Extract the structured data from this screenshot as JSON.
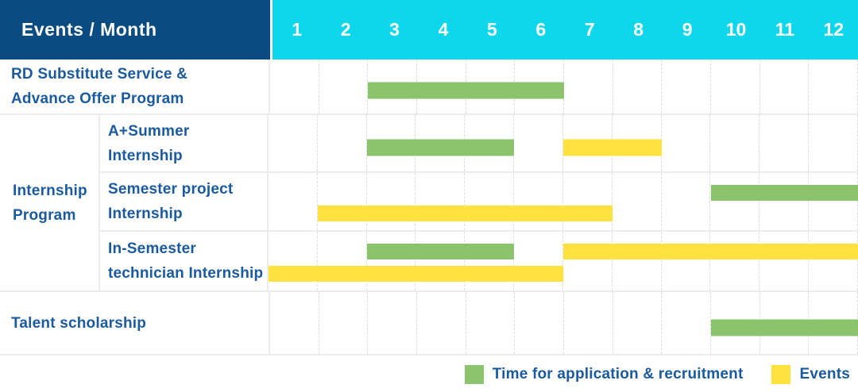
{
  "header": {
    "label": "Events / Month",
    "months": [
      "1",
      "2",
      "3",
      "4",
      "5",
      "6",
      "7",
      "8",
      "9",
      "10",
      "11",
      "12"
    ]
  },
  "colors": {
    "header_navy": "#0A4C82",
    "header_cyan": "#0FD7EB",
    "label_blue": "#1A5A9F",
    "recruitment": "#8BC46C",
    "events": "#FFE23D",
    "grid_dash": "#DCDCDC",
    "row_border": "#ECECEC"
  },
  "legend": {
    "items": [
      {
        "series": "recruitment",
        "label": "Time for application & recruitment",
        "color": "#8BC46C"
      },
      {
        "series": "events",
        "label": "Events",
        "color": "#FFE23D"
      }
    ]
  },
  "chart_data": {
    "type": "gantt",
    "x_categories": [
      "1",
      "2",
      "3",
      "4",
      "5",
      "6",
      "7",
      "8",
      "9",
      "10",
      "11",
      "12"
    ],
    "x_axis_label": "Events / Month",
    "legend_entries": [
      "Time for application & recruitment",
      "Events"
    ],
    "group_label_lines": [
      "Internship",
      "Program"
    ],
    "rows": [
      {
        "label": "RD Substitute Service & Advance Offer Program",
        "label_lines": [
          "RD Substitute Service &",
          "Advance Offer Program"
        ],
        "group": null,
        "bars": [
          {
            "series": "recruitment",
            "start_month": 3,
            "end_month": 6,
            "lane": "single"
          }
        ]
      },
      {
        "label": "A+Summer Internship",
        "label_lines": [
          "A+Summer",
          "Internship"
        ],
        "group": "Internship Program",
        "bars": [
          {
            "series": "recruitment",
            "start_month": 3,
            "end_month": 5,
            "lane": "single"
          },
          {
            "series": "events",
            "start_month": 7,
            "end_month": 8,
            "lane": "single"
          }
        ]
      },
      {
        "label": "Semester project Internship",
        "label_lines": [
          "Semester project",
          "Internship"
        ],
        "group": "Internship Program",
        "bars": [
          {
            "series": "recruitment",
            "start_month": 10,
            "end_month": 12,
            "lane": "top"
          },
          {
            "series": "events",
            "start_month": 2,
            "end_month": 7,
            "lane": "bottom"
          }
        ]
      },
      {
        "label": "In-Semester technician Internship",
        "label_lines": [
          "In-Semester",
          "technician Internship"
        ],
        "group": "Internship Program",
        "bars": [
          {
            "series": "recruitment",
            "start_month": 3,
            "end_month": 5,
            "lane": "top"
          },
          {
            "series": "events",
            "start_month": 7,
            "end_month": 12,
            "lane": "top"
          },
          {
            "series": "events",
            "start_month": 1,
            "end_month": 6,
            "lane": "bottom"
          }
        ]
      },
      {
        "label": "Talent scholarship",
        "label_lines": [
          "Talent scholarship"
        ],
        "group": null,
        "bars": [
          {
            "series": "recruitment",
            "start_month": 10,
            "end_month": 12,
            "lane": "single"
          }
        ]
      }
    ]
  }
}
